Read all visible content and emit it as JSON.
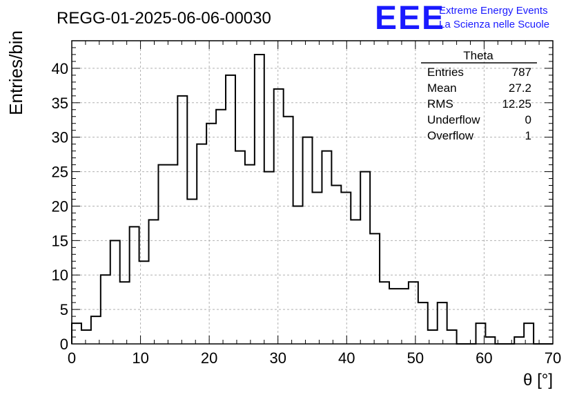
{
  "header": {
    "run_title": "REGG-01-2025-06-06-00030",
    "logo_text": "EEE",
    "logo_line1": "Extreme Energy Events",
    "logo_line2": "La Scienza nelle Scuole"
  },
  "stats_box": {
    "title": "Theta",
    "rows": [
      {
        "label": "Entries",
        "value": "787"
      },
      {
        "label": "Mean",
        "value": "27.2"
      },
      {
        "label": "RMS",
        "value": "12.25"
      },
      {
        "label": "Underflow",
        "value": "0"
      },
      {
        "label": "Overflow",
        "value": "1"
      }
    ]
  },
  "colors": {
    "accent": "#1a1aff",
    "line": "#000000",
    "grid": "#b0b0b0"
  },
  "chart_data": {
    "type": "bar",
    "style": "step-histogram",
    "title": "REGG-01-2025-06-06-00030",
    "xlabel": "θ [°]",
    "ylabel": "Entries/bin",
    "xlim": [
      0,
      70
    ],
    "ylim": [
      0,
      44
    ],
    "grid": true,
    "x_ticks": [
      "0",
      "10",
      "20",
      "30",
      "40",
      "50",
      "60",
      "70"
    ],
    "y_ticks": [
      "0",
      "5",
      "10",
      "15",
      "20",
      "25",
      "30",
      "35",
      "40"
    ],
    "bin_width": 1.4,
    "values": [
      3,
      2,
      4,
      10,
      15,
      9,
      17,
      12,
      18,
      26,
      26,
      36,
      21,
      29,
      32,
      34,
      39,
      28,
      26,
      42,
      25,
      37,
      33,
      20,
      30,
      22,
      28,
      23,
      22,
      18,
      25,
      16,
      9,
      8,
      8,
      9,
      6,
      2,
      6,
      2,
      0,
      0,
      3,
      1,
      0,
      0,
      1,
      3,
      0,
      0
    ]
  }
}
